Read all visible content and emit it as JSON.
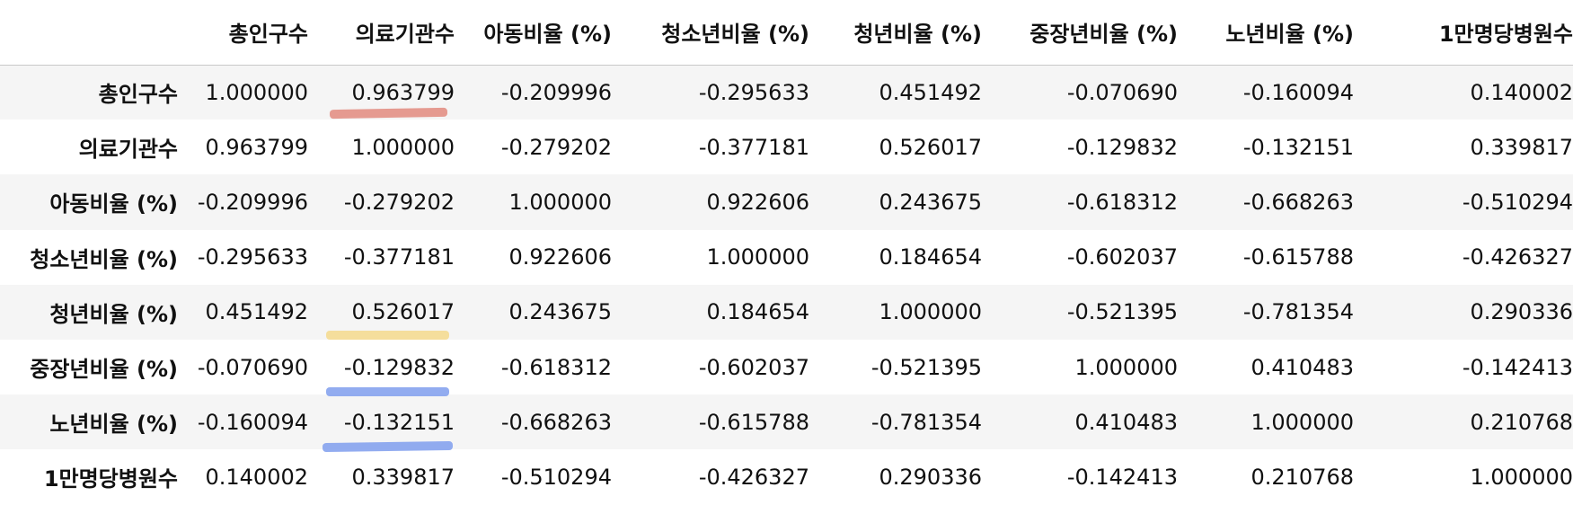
{
  "table": {
    "columns": [
      "총인구수",
      "의료기관수",
      "아동비율 (%)",
      "청소년비율 (%)",
      "청년비율 (%)",
      "중장년비율 (%)",
      "노년비율 (%)",
      "1만명당병원수"
    ],
    "rows": [
      {
        "label": "총인구수",
        "values": [
          "1.000000",
          "0.963799",
          "-0.209996",
          "-0.295633",
          "0.451492",
          "-0.070690",
          "-0.160094",
          "0.140002"
        ]
      },
      {
        "label": "의료기관수",
        "values": [
          "0.963799",
          "1.000000",
          "-0.279202",
          "-0.377181",
          "0.526017",
          "-0.129832",
          "-0.132151",
          "0.339817"
        ]
      },
      {
        "label": "아동비율 (%)",
        "values": [
          "-0.209996",
          "-0.279202",
          "1.000000",
          "0.922606",
          "0.243675",
          "-0.618312",
          "-0.668263",
          "-0.510294"
        ]
      },
      {
        "label": "청소년비율 (%)",
        "values": [
          "-0.295633",
          "-0.377181",
          "0.922606",
          "1.000000",
          "0.184654",
          "-0.602037",
          "-0.615788",
          "-0.426327"
        ]
      },
      {
        "label": "청년비율 (%)",
        "values": [
          "0.451492",
          "0.526017",
          "0.243675",
          "0.184654",
          "1.000000",
          "-0.521395",
          "-0.781354",
          "0.290336"
        ]
      },
      {
        "label": "중장년비율 (%)",
        "values": [
          "-0.070690",
          "-0.129832",
          "-0.618312",
          "-0.602037",
          "-0.521395",
          "1.000000",
          "0.410483",
          "-0.142413"
        ]
      },
      {
        "label": "노년비율 (%)",
        "values": [
          "-0.160094",
          "-0.132151",
          "-0.668263",
          "-0.615788",
          "-0.781354",
          "0.410483",
          "1.000000",
          "0.210768"
        ]
      },
      {
        "label": "1만명당병원수",
        "values": [
          "0.140002",
          "0.339817",
          "-0.510294",
          "-0.426327",
          "0.290336",
          "-0.142413",
          "0.210768",
          "1.000000"
        ]
      }
    ]
  },
  "highlight_colors": {
    "red": "#e2897e",
    "yellow": "#f5d98c",
    "blue": "#7f9ded"
  }
}
